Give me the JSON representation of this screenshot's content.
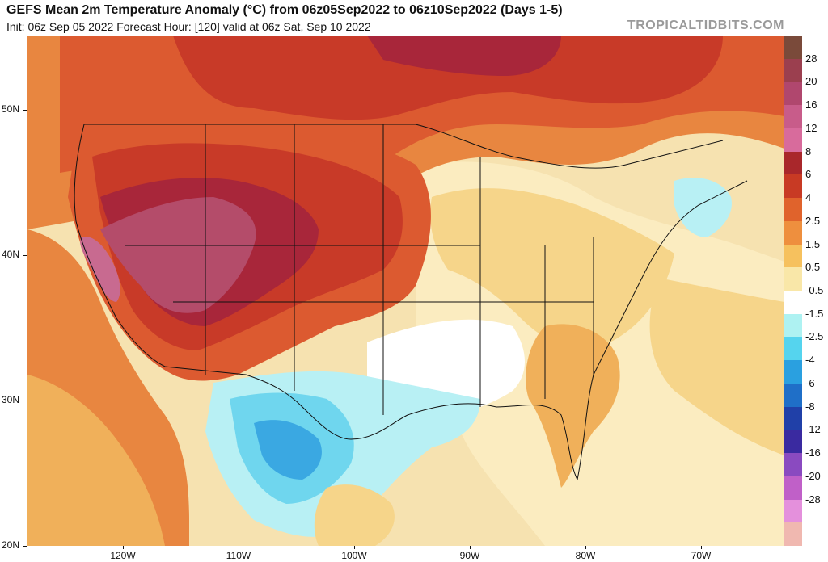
{
  "header": {
    "title": "GEFS Mean 2m Temperature Anomaly (°C) from 06z05Sep2022 to 06z10Sep2022 (Days 1-5)",
    "subtitle": "Init: 06z Sep 05 2022   Forecast Hour: [120]   valid at 06z Sat, Sep 10 2022",
    "site": "TROPICALTIDBITS.COM"
  },
  "axes": {
    "lat_labels": [
      "50N",
      "40N",
      "30N",
      "20N"
    ],
    "lon_labels": [
      "120W",
      "110W",
      "100W",
      "90W",
      "80W",
      "70W"
    ]
  },
  "colorbar": {
    "labels": [
      "28",
      "20",
      "16",
      "12",
      "8",
      "6",
      "4",
      "2.5",
      "1.5",
      "0.5",
      "-0.5",
      "-1.5",
      "-2.5",
      "-4",
      "-6",
      "-8",
      "-12",
      "-16",
      "-20",
      "-28"
    ],
    "colors": [
      "#7a4a3a",
      "#9b3f4f",
      "#b0476e",
      "#c85c8a",
      "#d86b9c",
      "#a9272b",
      "#c83a24",
      "#e0632c",
      "#ee8f3e",
      "#f6c15e",
      "#f9e7a8",
      "#ffffff",
      "#aef2f2",
      "#55d4ee",
      "#2aa0e0",
      "#1f6fc8",
      "#2040a8",
      "#3a2aa0",
      "#8a4ac0",
      "#c060c8",
      "#e490dc",
      "#f0b8b0"
    ]
  },
  "map": {
    "colors": {
      "ocean_warm": "#f6e2b0",
      "land_base": "#fbecc0",
      "anom_0_5": "#f6d58a",
      "anom_1_5": "#f0b05a",
      "anom_2_5": "#e88640",
      "anom_4": "#dc5a30",
      "anom_6": "#c83a28",
      "anom_8": "#a8263a",
      "anom_12": "#b44c6a",
      "anom_16": "#c86a90",
      "cool_1": "#ffffff",
      "cool_2": "#b8f0f4",
      "cool_3": "#6fd6ee",
      "cool_4": "#3aa8e2",
      "cool_5": "#2a7cd0",
      "lines": "#111111"
    }
  }
}
